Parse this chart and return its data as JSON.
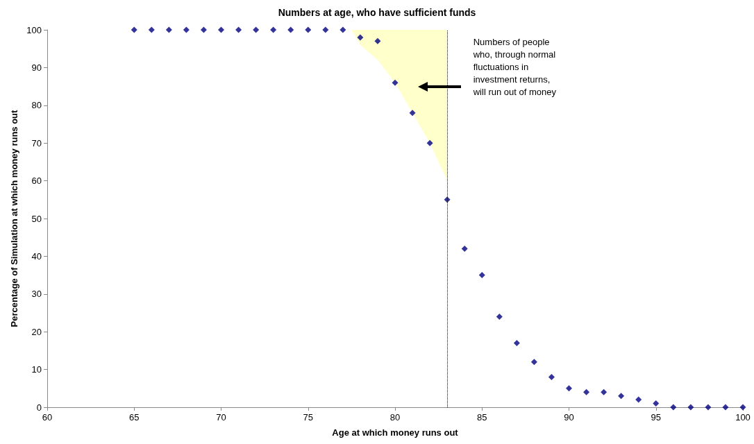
{
  "chart_data": {
    "type": "scatter",
    "title": "Numbers at age, who have sufficient funds",
    "xlabel": "Age at which money runs out",
    "ylabel": "Percentage of Simulation at which money runs out",
    "series": [
      {
        "type": "area",
        "color": "#ffffcc",
        "x": [
          77.5,
          78,
          79,
          80,
          81,
          82,
          83,
          83
        ],
        "marker": "none",
        "values": [
          100,
          96,
          92,
          86,
          78,
          70,
          60,
          100
        ]
      },
      {
        "marker": "diamond",
        "color": "#000080",
        "x": [
          65,
          66,
          67,
          68,
          69,
          70,
          71,
          72,
          73,
          74,
          75,
          76,
          77,
          78,
          79,
          80,
          81,
          82,
          83,
          84,
          85,
          86,
          87,
          88,
          89,
          90,
          91,
          92,
          93,
          94,
          95,
          96,
          97,
          98,
          99,
          100
        ],
        "values": [
          100,
          100,
          100,
          100,
          100,
          100,
          100,
          100,
          100,
          100,
          100,
          100,
          100,
          98,
          97,
          86,
          78,
          70,
          55,
          42,
          35,
          24,
          17,
          12,
          8,
          5,
          4,
          4,
          3,
          2,
          1,
          0,
          0,
          0,
          0,
          0
        ]
      }
    ],
    "xlim": [
      60,
      100
    ],
    "xticks": [
      60,
      65,
      70,
      75,
      80,
      85,
      90,
      95,
      100
    ],
    "ylim": [
      0,
      100
    ],
    "yticks": [
      0,
      10,
      20,
      30,
      40,
      50,
      60,
      70,
      80,
      90,
      100
    ],
    "ref_lines": [
      {
        "axis": "x",
        "value": 83,
        "color": "#000000",
        "line_style": "dotted"
      }
    ],
    "annotations": [
      "Numbers of people\nwho, through normal\nfluctuations in\ninvestment returns,\nwill run out of money"
    ],
    "grid": false
  }
}
